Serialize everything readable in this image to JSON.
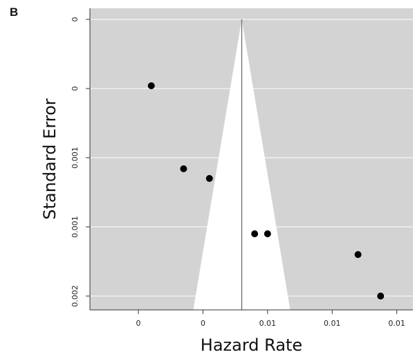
{
  "panel_label": "B",
  "chart_data": {
    "type": "scatter",
    "subtype": "funnel plot",
    "xlabel": "Hazard Rate",
    "ylabel": "Standard Error",
    "x_tick_labels": [
      "0",
      "0",
      "0.01",
      "0.01",
      "0.01"
    ],
    "x_tick_values": [
      0.002,
      0.004,
      0.006,
      0.008,
      0.01
    ],
    "y_tick_labels": [
      "0",
      "0",
      "0.001",
      "0.001",
      "0.002"
    ],
    "y_tick_values": [
      0,
      0.0005,
      0.001,
      0.0015,
      0.002
    ],
    "y_reversed": true,
    "xlim": [
      0.0005,
      0.0105
    ],
    "ylim": [
      0,
      0.002
    ],
    "summary_estimate": 0.0052,
    "funnel_base_x": [
      0.0037,
      0.0067
    ],
    "background_color": "#d3d3d3",
    "funnel_color": "#ffffff",
    "gridlines": true,
    "points": [
      {
        "x": 0.0024,
        "y": 0.00048
      },
      {
        "x": 0.0034,
        "y": 0.00108
      },
      {
        "x": 0.0042,
        "y": 0.00115
      },
      {
        "x": 0.006,
        "y": 0.00155
      },
      {
        "x": 0.0056,
        "y": 0.00155
      },
      {
        "x": 0.0088,
        "y": 0.0017
      },
      {
        "x": 0.0095,
        "y": 0.002
      }
    ]
  }
}
